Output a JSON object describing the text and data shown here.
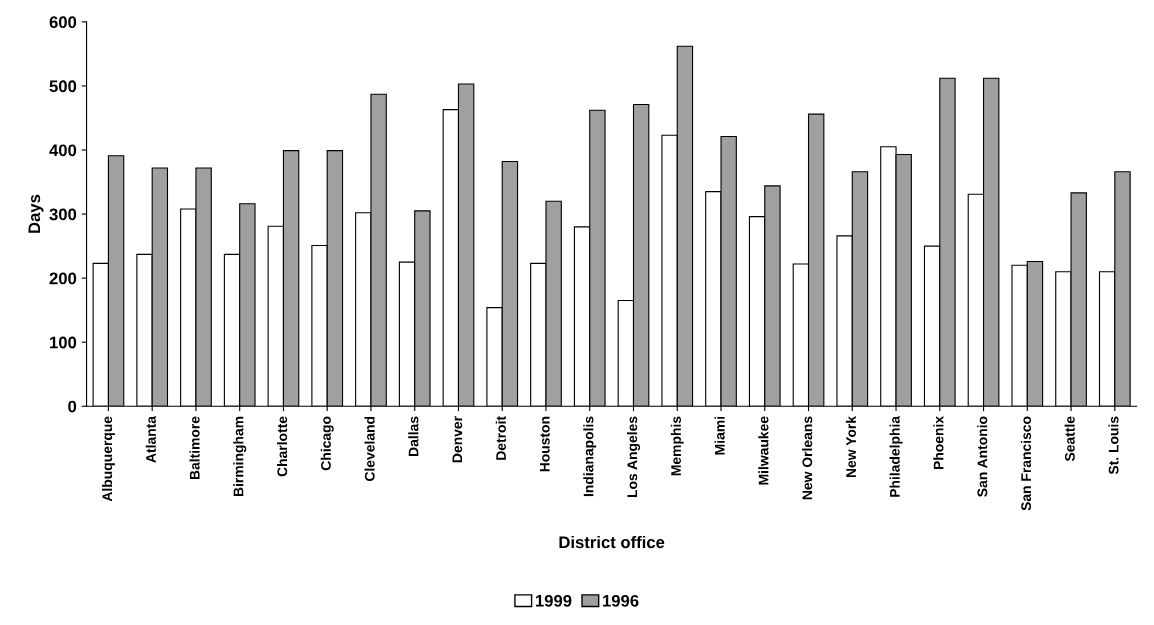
{
  "chart_data": {
    "type": "bar",
    "xlabel": "District office",
    "ylabel": "Days",
    "categories": [
      "Albuquerque",
      "Atlanta",
      "Baltimore",
      "Birmingham",
      "Charlotte",
      "Chicago",
      "Cleveland",
      "Dallas",
      "Denver",
      "Detroit",
      "Houston",
      "Indianapolis",
      "Los Angeles",
      "Memphis",
      "Miami",
      "Milwaukee",
      "New Orleans",
      "New York",
      "Philadelphia",
      "Phoenix",
      "San Antonio",
      "San Francisco",
      "Seattle",
      "St. Louis"
    ],
    "series": [
      {
        "name": "1999",
        "color": "#ffffff",
        "values": [
          223,
          237,
          308,
          237,
          281,
          251,
          302,
          225,
          463,
          154,
          223,
          280,
          165,
          423,
          335,
          296,
          222,
          266,
          405,
          250,
          331,
          220,
          210,
          210
        ]
      },
      {
        "name": "1996",
        "color": "#a0a0a0",
        "values": [
          391,
          372,
          372,
          316,
          399,
          399,
          487,
          305,
          503,
          382,
          320,
          462,
          471,
          562,
          421,
          344,
          456,
          366,
          393,
          512,
          512,
          226,
          333,
          366
        ]
      }
    ],
    "ylim": [
      0,
      600
    ],
    "yticks": [
      0,
      100,
      200,
      300,
      400,
      500,
      600
    ],
    "grid": false,
    "legend": "bottom"
  }
}
